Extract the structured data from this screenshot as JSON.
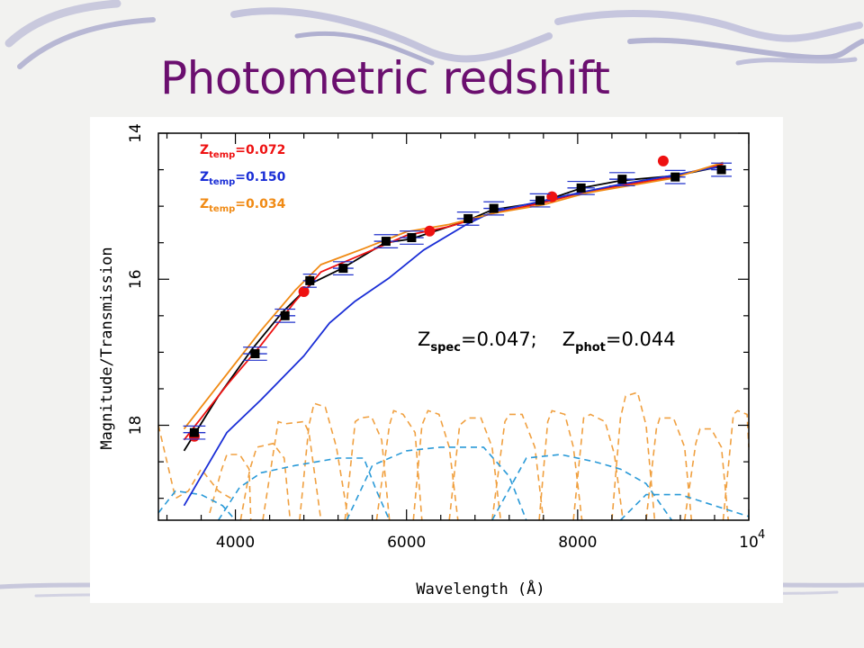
{
  "slide": {
    "title": "Photometric redshift"
  },
  "colors": {
    "title": "#6b0f6f",
    "temp_0072": "#ee1111",
    "temp_0150": "#1a2ed6",
    "temp_0034": "#f08a14",
    "filter_curves": "#f0a040",
    "broad_filters": "#2a9ad8",
    "observed": "#000000",
    "errorbar": "#2233cc"
  },
  "chart_data": {
    "type": "line",
    "xlabel": "Wavelength (Å)",
    "ylabel": "Magnitude/Transmission",
    "xlim": [
      3100,
      10000
    ],
    "ylim": [
      14,
      19.3
    ],
    "y_inverted": true,
    "x_ticks": [
      "4000",
      "6000",
      "8000",
      "10"
    ],
    "x_tick_exponent": "4",
    "y_ticks": [
      "14",
      "16",
      "18"
    ],
    "legend": {
      "placement": "top-left",
      "entries": [
        {
          "label": "Z",
          "subscript": "temp",
          "value": "=0.072",
          "color": "#ee1111"
        },
        {
          "label": "Z",
          "subscript": "temp",
          "value": "=0.150",
          "color": "#1a2ed6"
        },
        {
          "label": "Z",
          "subscript": "temp",
          "value": "=0.034",
          "color": "#f08a14"
        }
      ]
    },
    "annotation": {
      "spec_label": "Z",
      "spec_sub": "spec",
      "spec_value": "=0.047;",
      "phot_label": "Z",
      "phot_sub": "phot",
      "phot_value": "=0.044"
    },
    "series": [
      {
        "style": "line",
        "color": "#000000",
        "x": [
          3400,
          3800,
          4200,
          4550,
          4900,
          5250,
          5750,
          6050,
          6700,
          7000,
          7550,
          8050,
          8500,
          9150,
          9700
        ],
        "y": [
          18.35,
          17.6,
          16.95,
          16.45,
          16.05,
          15.85,
          15.5,
          15.45,
          15.2,
          15.05,
          14.95,
          14.75,
          14.65,
          14.58,
          14.45
        ]
      },
      {
        "style": "line",
        "color": "#ee1111",
        "x": [
          3400,
          3900,
          4300,
          4700,
          5000,
          5500,
          6000,
          6500,
          7000,
          7600,
          8100,
          8600,
          9100,
          9700
        ],
        "y": [
          18.2,
          17.45,
          16.9,
          16.3,
          15.9,
          15.65,
          15.4,
          15.28,
          15.1,
          14.95,
          14.8,
          14.7,
          14.6,
          14.42
        ]
      },
      {
        "style": "line",
        "color": "#1a2ed6",
        "x": [
          3400,
          3600,
          3900,
          4300,
          4800,
          5100,
          5400,
          5800,
          6200,
          6700,
          7000,
          7500,
          8000,
          8500,
          9000,
          9700
        ],
        "y": [
          19.1,
          18.7,
          18.1,
          17.65,
          17.05,
          16.6,
          16.3,
          15.98,
          15.6,
          15.25,
          15.08,
          14.95,
          14.82,
          14.7,
          14.6,
          14.45
        ]
      },
      {
        "style": "line",
        "color": "#f08a14",
        "x": [
          3400,
          3900,
          4300,
          4700,
          5000,
          5500,
          6000,
          6500,
          7000,
          7600,
          8100,
          8600,
          9100,
          9700
        ],
        "y": [
          18.05,
          17.3,
          16.7,
          16.15,
          15.8,
          15.58,
          15.35,
          15.25,
          15.1,
          14.98,
          14.82,
          14.72,
          14.62,
          14.4
        ]
      },
      {
        "style": "markers",
        "marker": "circle",
        "color": "#ee1111",
        "x": [
          3520,
          4800,
          6270,
          7700,
          9000
        ],
        "y": [
          18.15,
          16.17,
          15.34,
          14.87,
          14.38
        ]
      },
      {
        "style": "markers",
        "marker": "square",
        "color": "#000000",
        "x": [
          3520,
          4230,
          4580,
          4870,
          5260,
          5760,
          6060,
          6720,
          7020,
          7560,
          8040,
          8520,
          9140,
          9680
        ],
        "y": [
          18.1,
          17.02,
          16.5,
          16.02,
          15.85,
          15.48,
          15.43,
          15.17,
          15.03,
          14.92,
          14.75,
          14.63,
          14.6,
          14.5
        ],
        "xerr": [
          130,
          140,
          120,
          80,
          120,
          140,
          140,
          130,
          120,
          120,
          160,
          150,
          120,
          120
        ],
        "yerr": [
          0.09,
          0.09,
          0.09,
          0.09,
          0.09,
          0.09,
          0.09,
          0.09,
          0.09,
          0.09,
          0.09,
          0.09,
          0.09,
          0.09
        ]
      },
      {
        "style": "dashed-bands",
        "color": "#f0a040",
        "bands": [
          {
            "x": [
              3100,
              3300,
              3450,
              3600,
              3800,
              3950
            ],
            "y": [
              18.0,
              19.0,
              18.9,
              18.6,
              18.9,
              19.0
            ]
          },
          {
            "x": [
              3700,
              3840,
              3900,
              4050,
              4160,
              4180
            ],
            "y": [
              19.2,
              18.6,
              18.4,
              18.4,
              18.6,
              19.3
            ]
          },
          {
            "x": [
              4060,
              4170,
              4250,
              4440,
              4570,
              4640
            ],
            "y": [
              19.3,
              18.6,
              18.3,
              18.25,
              18.45,
              19.3
            ]
          },
          {
            "x": [
              4320,
              4500,
              4580,
              4800,
              4860,
              5000
            ],
            "y": [
              19.3,
              17.95,
              17.98,
              17.95,
              18.1,
              19.3
            ]
          },
          {
            "x": [
              4750,
              4860,
              4920,
              5050,
              5180,
              5320
            ],
            "y": [
              19.3,
              18.0,
              17.7,
              17.75,
              18.3,
              19.3
            ]
          },
          {
            "x": [
              5280,
              5400,
              5460,
              5590,
              5710,
              5800
            ],
            "y": [
              19.3,
              17.95,
              17.9,
              17.88,
              18.2,
              19.3
            ]
          },
          {
            "x": [
              5650,
              5800,
              5850,
              5960,
              6100,
              6180
            ],
            "y": [
              19.3,
              18.0,
              17.8,
              17.85,
              18.1,
              19.3
            ]
          },
          {
            "x": [
              6080,
              6180,
              6250,
              6380,
              6500,
              6600
            ],
            "y": [
              19.3,
              18.0,
              17.8,
              17.85,
              18.3,
              19.3
            ]
          },
          {
            "x": [
              6500,
              6620,
              6720,
              6870,
              7000,
              7100
            ],
            "y": [
              19.3,
              18.0,
              17.9,
              17.9,
              18.3,
              19.3
            ]
          },
          {
            "x": [
              7000,
              7150,
              7200,
              7350,
              7500,
              7600
            ],
            "y": [
              19.3,
              17.95,
              17.85,
              17.85,
              18.3,
              19.3
            ]
          },
          {
            "x": [
              7550,
              7650,
              7700,
              7850,
              7950,
              8050
            ],
            "y": [
              19.3,
              17.95,
              17.8,
              17.85,
              18.3,
              19.3
            ]
          },
          {
            "x": [
              7950,
              8070,
              8150,
              8320,
              8430,
              8530
            ],
            "y": [
              19.3,
              17.9,
              17.85,
              17.95,
              18.4,
              19.3
            ]
          },
          {
            "x": [
              8400,
              8500,
              8560,
              8700,
              8800,
              8900
            ],
            "y": [
              19.3,
              17.9,
              17.6,
              17.55,
              18.0,
              19.3
            ]
          },
          {
            "x": [
              8800,
              8920,
              8960,
              9120,
              9250,
              9330
            ],
            "y": [
              19.3,
              18.05,
              17.9,
              17.9,
              18.3,
              19.3
            ]
          },
          {
            "x": [
              9250,
              9380,
              9430,
              9560,
              9680,
              9760
            ],
            "y": [
              19.3,
              18.25,
              18.05,
              18.05,
              18.3,
              19.3
            ]
          },
          {
            "x": [
              9700,
              9820,
              9870,
              9980,
              10000
            ],
            "y": [
              19.3,
              17.85,
              17.8,
              17.85,
              18.3
            ]
          }
        ]
      },
      {
        "style": "dashed-bands",
        "color": "#2a9ad8",
        "bands": [
          {
            "x": [
              3100,
              3300,
              3600,
              3850,
              4000
            ],
            "y": [
              19.2,
              18.9,
              18.95,
              19.1,
              19.3
            ]
          },
          {
            "x": [
              3800,
              4050,
              4300,
              4700,
              5200,
              5500,
              5650,
              5800
            ],
            "y": [
              19.3,
              18.85,
              18.65,
              18.55,
              18.45,
              18.45,
              18.9,
              19.3
            ]
          },
          {
            "x": [
              5300,
              5600,
              6000,
              6400,
              6900,
              7200,
              7400
            ],
            "y": [
              19.3,
              18.55,
              18.35,
              18.3,
              18.3,
              18.7,
              19.3
            ]
          },
          {
            "x": [
              7000,
              7400,
              7800,
              8200,
              8500,
              8800,
              9100
            ],
            "y": [
              19.3,
              18.45,
              18.4,
              18.5,
              18.6,
              18.8,
              19.3
            ]
          },
          {
            "x": [
              8500,
              8800,
              9200,
              9600,
              10000
            ],
            "y": [
              19.3,
              18.95,
              18.95,
              19.1,
              19.25
            ]
          }
        ]
      }
    ]
  }
}
